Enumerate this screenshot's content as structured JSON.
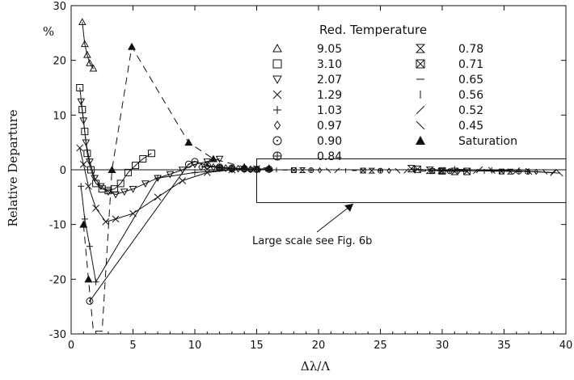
{
  "chart_data": {
    "type": "line",
    "xlabel": "Δλ/Λ",
    "ylabel": "Relative Departure",
    "yunit": "%",
    "xlim": [
      0,
      40
    ],
    "ylim": [
      -30,
      30
    ],
    "xticks": [
      "0",
      "5",
      "10",
      "15",
      "20",
      "25",
      "30",
      "35",
      "40"
    ],
    "yticks": [
      "-30",
      "-20",
      "-10",
      "0",
      "10",
      "20",
      "30"
    ],
    "legend_title": "Red. Temperature",
    "legend_position": "top-right",
    "annotation": "Large scale see Fig. 6b",
    "series": [
      {
        "name": "9.05",
        "marker": "triangle-up",
        "line": "solid",
        "x": [
          0.9,
          1.1,
          1.3,
          1.5,
          1.8
        ],
        "y": [
          27,
          23,
          21,
          19.5,
          18.5
        ]
      },
      {
        "name": "3.10",
        "marker": "square",
        "line": "solid",
        "x": [
          0.7,
          0.9,
          1.1,
          1.3,
          1.6,
          2.0,
          2.5,
          3.0,
          3.5,
          4.0,
          4.6,
          5.2,
          5.8,
          6.5
        ],
        "y": [
          15,
          11,
          7,
          3,
          0,
          -2.5,
          -3.5,
          -3.8,
          -3.5,
          -2.5,
          -0.5,
          0.8,
          2,
          3
        ]
      },
      {
        "name": "2.07",
        "marker": "triangle-down",
        "line": "solid",
        "x": [
          0.8,
          1.0,
          1.2,
          1.5,
          1.9,
          2.4,
          3.0,
          3.6,
          4.3,
          5.0,
          6.0,
          7.0,
          8.0,
          9.0,
          10.0,
          11.0,
          12.0
        ],
        "y": [
          12.5,
          9,
          5,
          1.5,
          -1.5,
          -3,
          -4,
          -4.5,
          -4,
          -3.5,
          -2.5,
          -1.5,
          -0.8,
          0,
          1,
          1.5,
          2
        ]
      },
      {
        "name": "1.29",
        "marker": "x",
        "line": "solid",
        "x": [
          0.7,
          1.0,
          1.4,
          2.0,
          2.8,
          3.6,
          5.0,
          7.0,
          9.0,
          11.0,
          13.0,
          15.0
        ],
        "y": [
          4,
          1,
          -3,
          -7,
          -9.5,
          -9,
          -8,
          -5,
          -2,
          -0.5,
          0,
          0.2
        ]
      },
      {
        "name": "1.03",
        "marker": "plus",
        "line": "solid",
        "x": [
          0.8,
          1.1,
          1.5,
          2.0,
          7.0,
          10.0,
          13.0,
          16.0
        ],
        "y": [
          -3,
          -9,
          -14,
          -20.5,
          -1.5,
          -0.5,
          0,
          0.2
        ]
      },
      {
        "name": "0.97",
        "marker": "diamond",
        "line": "solid",
        "x": [
          10.5,
          11.0,
          11.5,
          12.0,
          12.5,
          13.0,
          13.5,
          14.0,
          14.5,
          15.0
        ],
        "y": [
          0.5,
          0.6,
          0.5,
          0.4,
          0.3,
          0.2,
          0.2,
          0.1,
          0.1,
          0.1
        ]
      },
      {
        "name": "0.90",
        "marker": "circle",
        "line": "solid",
        "x": [
          1.5,
          9.5,
          10.0,
          11.0,
          12.0,
          13.0,
          14.0
        ],
        "y": [
          -24,
          1,
          1.5,
          0.8,
          0.5,
          0.3,
          0.2
        ]
      },
      {
        "name": "0.84",
        "marker": "circle-plus",
        "line": "solid",
        "x": [
          12.0,
          13.0,
          14.0,
          15.0,
          16.0
        ],
        "y": [
          0.3,
          0.2,
          0.2,
          0.1,
          0.1
        ]
      },
      {
        "name": "0.78",
        "marker": "hourglass",
        "line": "solid",
        "x": [
          27.5,
          29.0,
          31.0
        ],
        "y": [
          0.2,
          -0.1,
          -0.3
        ]
      },
      {
        "name": "0.71",
        "marker": "bowtie",
        "line": "solid",
        "x": [
          28.0,
          30.0,
          32.0
        ],
        "y": [
          0.1,
          -0.2,
          -0.3
        ]
      },
      {
        "name": "0.65",
        "marker": "hline",
        "line": "solid",
        "x": [
          30.0,
          33.0,
          36.0
        ],
        "y": [
          -0.1,
          -0.2,
          -0.3
        ]
      },
      {
        "name": "0.56",
        "marker": "vline",
        "line": "solid",
        "x": [
          31.0,
          34.0,
          37.0
        ],
        "y": [
          0.1,
          -0.1,
          -0.3
        ]
      },
      {
        "name": "0.52",
        "marker": "slash",
        "line": "solid",
        "x": [
          33.0,
          36.0,
          39.0
        ],
        "y": [
          0,
          -0.2,
          -0.5
        ]
      },
      {
        "name": "0.45",
        "marker": "backslash",
        "line": "solid",
        "x": [
          34.0,
          37.0,
          39.5
        ],
        "y": [
          -0.1,
          -0.3,
          -0.6
        ]
      },
      {
        "name": "Saturation",
        "marker": "filled-triangle",
        "line": "dashed",
        "x": [
          1.0,
          1.4,
          1.8,
          2.5,
          3.3,
          4.9,
          9.5,
          11.5,
          14.0,
          16.0
        ],
        "y": [
          -10,
          -20,
          -29.5,
          -29.5,
          0,
          22.5,
          5,
          2,
          0.5,
          0.3
        ]
      }
    ]
  }
}
